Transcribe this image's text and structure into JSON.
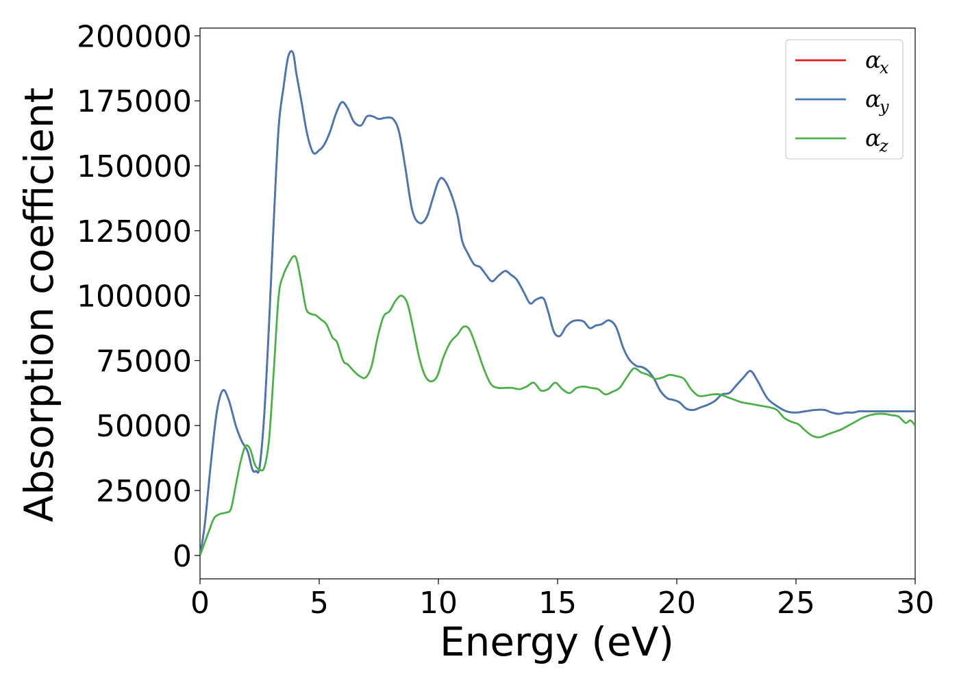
{
  "chart_data": {
    "type": "line",
    "xlabel": "Energy (eV)",
    "ylabel": "Absorption coefficient",
    "xlim": [
      0,
      30
    ],
    "ylim": [
      -9000,
      203000
    ],
    "xticks": [
      0,
      5,
      10,
      15,
      20,
      25,
      30
    ],
    "yticks": [
      0,
      25000,
      50000,
      75000,
      100000,
      125000,
      150000,
      175000,
      200000
    ],
    "grid": false,
    "legend_position": "top-right",
    "series": [
      {
        "name": "α",
        "subscript": "x",
        "color": "#e41a1c",
        "x": [
          0,
          0.2,
          0.45,
          0.7,
          0.95,
          1.2,
          1.5,
          1.75,
          2.0,
          2.2,
          2.35,
          2.5,
          2.7,
          2.9,
          3.1,
          3.3,
          3.5,
          3.7,
          3.9,
          4.05,
          4.25,
          4.5,
          4.75,
          5.0,
          5.2,
          5.45,
          5.7,
          5.95,
          6.2,
          6.45,
          6.75,
          7.0,
          7.25,
          7.5,
          7.8,
          8.1,
          8.35,
          8.6,
          8.9,
          9.2,
          9.5,
          9.75,
          10.0,
          10.2,
          10.5,
          10.8,
          11.0,
          11.25,
          11.5,
          11.75,
          12.0,
          12.25,
          12.5,
          12.8,
          13.05,
          13.3,
          13.6,
          13.85,
          14.1,
          14.4,
          14.6,
          14.85,
          15.1,
          15.35,
          15.6,
          15.85,
          16.1,
          16.35,
          16.6,
          16.85,
          17.15,
          17.45,
          17.75,
          18.0,
          18.3,
          18.55,
          18.8,
          19.05,
          19.3,
          19.6,
          19.8,
          20.1,
          20.4,
          20.7,
          21.0,
          21.3,
          21.6,
          21.9,
          22.2,
          22.5,
          22.8,
          23.1,
          23.4,
          23.8,
          24.2,
          24.6,
          25.0,
          25.4,
          25.8,
          26.2,
          26.5,
          26.8,
          27.1,
          27.4,
          27.65,
          27.9,
          28.15,
          28.45,
          28.75,
          29.05,
          29.35,
          29.6,
          29.8,
          30.0
        ],
        "y": [
          0,
          12000,
          35000,
          55000,
          63500,
          60000,
          50000,
          44000,
          40000,
          33000,
          32500,
          34000,
          55000,
          90000,
          130000,
          165000,
          180000,
          192000,
          193500,
          185000,
          175000,
          162000,
          155000,
          156000,
          158000,
          163000,
          170000,
          174500,
          172000,
          167000,
          165500,
          169000,
          169000,
          168000,
          168500,
          168000,
          163000,
          150000,
          133000,
          128000,
          130000,
          137000,
          144000,
          145000,
          140000,
          131000,
          121000,
          116000,
          112000,
          111000,
          108000,
          105500,
          107500,
          109500,
          108000,
          106000,
          101000,
          97000,
          98500,
          99000,
          94000,
          86000,
          84500,
          88000,
          90000,
          90500,
          90000,
          87500,
          88500,
          89000,
          90500,
          88000,
          80000,
          75500,
          73000,
          72500,
          71000,
          68000,
          63500,
          60500,
          60000,
          59000,
          56500,
          56000,
          57000,
          58000,
          59500,
          62000,
          62500,
          65500,
          68500,
          71000,
          67000,
          60500,
          57500,
          55500,
          55000,
          55500,
          56000,
          56000,
          55000,
          54500,
          55000,
          55000,
          55500,
          55500,
          55500,
          55500,
          55500,
          55500,
          55500,
          55500,
          55500,
          55500
        ]
      },
      {
        "name": "α",
        "subscript": "y",
        "color": "#4878b0",
        "x": [
          0,
          0.2,
          0.45,
          0.7,
          0.95,
          1.2,
          1.5,
          1.75,
          2.0,
          2.2,
          2.35,
          2.5,
          2.7,
          2.9,
          3.1,
          3.3,
          3.5,
          3.7,
          3.9,
          4.05,
          4.25,
          4.5,
          4.75,
          5.0,
          5.2,
          5.45,
          5.7,
          5.95,
          6.2,
          6.45,
          6.75,
          7.0,
          7.25,
          7.5,
          7.8,
          8.1,
          8.35,
          8.6,
          8.9,
          9.2,
          9.5,
          9.75,
          10.0,
          10.2,
          10.5,
          10.8,
          11.0,
          11.25,
          11.5,
          11.75,
          12.0,
          12.25,
          12.5,
          12.8,
          13.05,
          13.3,
          13.6,
          13.85,
          14.1,
          14.4,
          14.6,
          14.85,
          15.1,
          15.35,
          15.6,
          15.85,
          16.1,
          16.35,
          16.6,
          16.85,
          17.15,
          17.45,
          17.75,
          18.0,
          18.3,
          18.55,
          18.8,
          19.05,
          19.3,
          19.6,
          19.8,
          20.1,
          20.4,
          20.7,
          21.0,
          21.3,
          21.6,
          21.9,
          22.2,
          22.5,
          22.8,
          23.1,
          23.4,
          23.8,
          24.2,
          24.6,
          25.0,
          25.4,
          25.8,
          26.2,
          26.5,
          26.8,
          27.1,
          27.4,
          27.65,
          27.9,
          28.15,
          28.45,
          28.75,
          29.05,
          29.35,
          29.6,
          29.8,
          30.0
        ],
        "y": [
          0,
          12000,
          35000,
          55000,
          63500,
          60000,
          50000,
          44000,
          40000,
          33000,
          32500,
          34000,
          55000,
          90000,
          130000,
          165000,
          180000,
          192000,
          193500,
          185000,
          175000,
          162000,
          155000,
          156000,
          158000,
          163000,
          170000,
          174500,
          172000,
          167000,
          165500,
          169000,
          169000,
          168000,
          168500,
          168000,
          163000,
          150000,
          133000,
          128000,
          130000,
          137000,
          144000,
          145000,
          140000,
          131000,
          121000,
          116000,
          112000,
          111000,
          108000,
          105500,
          107500,
          109500,
          108000,
          106000,
          101000,
          97000,
          98500,
          99000,
          94000,
          86000,
          84500,
          88000,
          90000,
          90500,
          90000,
          87500,
          88500,
          89000,
          90500,
          88000,
          80000,
          75500,
          73000,
          72500,
          71000,
          68000,
          63500,
          60500,
          60000,
          59000,
          56500,
          56000,
          57000,
          58000,
          59500,
          62000,
          62500,
          65500,
          68500,
          71000,
          67000,
          60500,
          57500,
          55500,
          55000,
          55500,
          56000,
          56000,
          55000,
          54500,
          55000,
          55000,
          55500,
          55500,
          55500,
          55500,
          55500,
          55500,
          55500,
          55500,
          55500,
          55500
        ]
      },
      {
        "name": "α",
        "subscript": "z",
        "color": "#4daf4a",
        "x": [
          0,
          0.2,
          0.4,
          0.6,
          0.85,
          1.1,
          1.3,
          1.5,
          1.7,
          1.9,
          2.1,
          2.3,
          2.5,
          2.7,
          2.9,
          3.1,
          3.3,
          3.5,
          3.7,
          3.9,
          4.05,
          4.25,
          4.45,
          4.65,
          4.85,
          5.05,
          5.3,
          5.55,
          5.75,
          6.0,
          6.2,
          6.45,
          6.7,
          6.95,
          7.2,
          7.45,
          7.7,
          7.95,
          8.2,
          8.45,
          8.7,
          8.95,
          9.2,
          9.45,
          9.7,
          9.95,
          10.2,
          10.5,
          10.8,
          11.05,
          11.3,
          11.6,
          11.9,
          12.2,
          12.5,
          12.8,
          13.1,
          13.4,
          13.7,
          14.0,
          14.3,
          14.6,
          14.9,
          15.2,
          15.5,
          15.8,
          16.1,
          16.4,
          16.7,
          17.0,
          17.3,
          17.6,
          17.9,
          18.2,
          18.5,
          18.8,
          19.1,
          19.4,
          19.7,
          20.0,
          20.3,
          20.6,
          20.9,
          21.2,
          21.5,
          21.8,
          22.1,
          22.4,
          22.7,
          23.0,
          23.3,
          23.6,
          23.9,
          24.2,
          24.5,
          24.8,
          25.1,
          25.4,
          25.7,
          26.0,
          26.3,
          26.6,
          26.9,
          27.2,
          27.5,
          27.8,
          28.1,
          28.4,
          28.7,
          29.0,
          29.3,
          29.6,
          29.8,
          30.0
        ],
        "y": [
          0,
          5000,
          10000,
          14500,
          16000,
          16500,
          18000,
          27000,
          36000,
          42000,
          41000,
          35000,
          33000,
          34000,
          45000,
          72000,
          100000,
          108000,
          112000,
          115000,
          114000,
          105000,
          95000,
          93000,
          92500,
          91000,
          89000,
          84000,
          82000,
          75000,
          73500,
          71000,
          69000,
          68500,
          73000,
          84000,
          92000,
          94000,
          98000,
          100000,
          97000,
          87000,
          76000,
          69000,
          67000,
          69000,
          76000,
          82000,
          85000,
          88000,
          87000,
          80000,
          72000,
          66000,
          64500,
          64500,
          64500,
          64000,
          65000,
          66500,
          63500,
          64000,
          66500,
          64000,
          62500,
          64500,
          65000,
          64500,
          64000,
          62000,
          63000,
          64500,
          68500,
          72000,
          70500,
          69500,
          68000,
          68500,
          69500,
          69000,
          68000,
          64000,
          61500,
          61500,
          62000,
          62000,
          61000,
          60000,
          59000,
          58500,
          58000,
          57500,
          57000,
          56000,
          53000,
          51500,
          50500,
          48000,
          46000,
          45500,
          46500,
          47500,
          48500,
          50000,
          51500,
          53000,
          54000,
          54500,
          54500,
          54000,
          53500,
          51000,
          52000,
          50000
        ]
      }
    ]
  }
}
